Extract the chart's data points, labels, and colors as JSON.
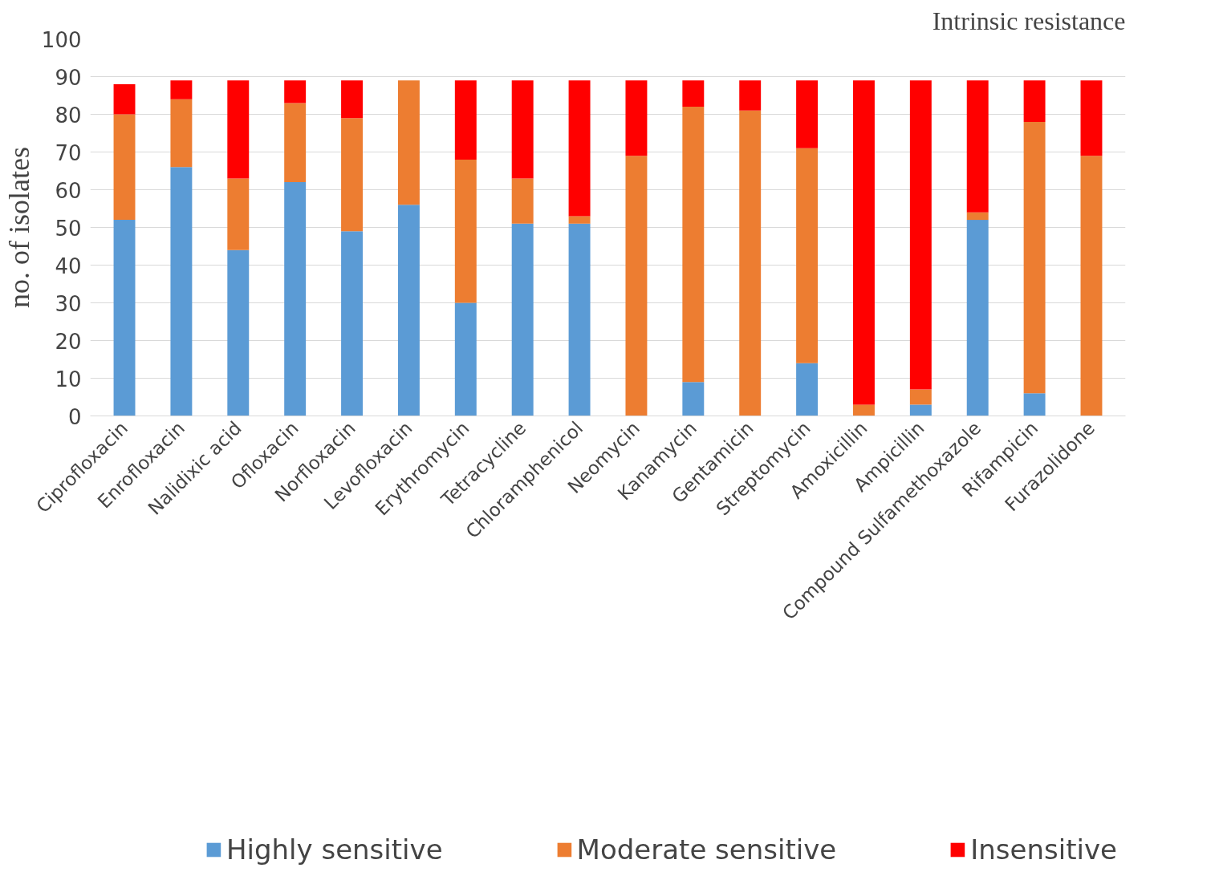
{
  "chart_data": {
    "type": "bar",
    "stacked": true,
    "ylabel": "no. of isolates",
    "categories": [
      "Ciprofloxacin",
      "Enrofloxacin",
      "Nalidixic acid",
      "Ofloxacin",
      "Norfloxacin",
      "Levofloxacin",
      "Erythromycin",
      "Tetracycline",
      "Chloramphenicol",
      "Neomycin",
      "Kanamycin",
      "Gentamicin",
      "Streptomycin",
      "Amoxicillin",
      "Ampicillin",
      "Compound Sulfamethoxazole",
      "Rifampicin",
      "Furazolidone"
    ],
    "series": [
      {
        "name": "Highly sensitive",
        "color": "#5b9bd5",
        "values": [
          52,
          66,
          44,
          62,
          49,
          56,
          30,
          51,
          51,
          0,
          9,
          0,
          14,
          0,
          3,
          52,
          6,
          0
        ]
      },
      {
        "name": "Moderate sensitive",
        "color": "#ed7d31",
        "values": [
          28,
          18,
          19,
          21,
          30,
          33,
          38,
          12,
          2,
          69,
          73,
          81,
          57,
          3,
          4,
          2,
          72,
          69
        ]
      },
      {
        "name": "Insensitive",
        "color": "#ff0000",
        "values": [
          8,
          5,
          26,
          6,
          10,
          0,
          21,
          26,
          36,
          20,
          7,
          8,
          18,
          86,
          82,
          35,
          11,
          20
        ]
      }
    ],
    "ylim": [
      0,
      100
    ],
    "yticks": [
      0,
      10,
      20,
      30,
      40,
      50,
      60,
      70,
      80,
      90,
      100
    ],
    "grid": "y",
    "legend": "bottom",
    "annotations": [
      "Intrinsic resistance"
    ]
  }
}
